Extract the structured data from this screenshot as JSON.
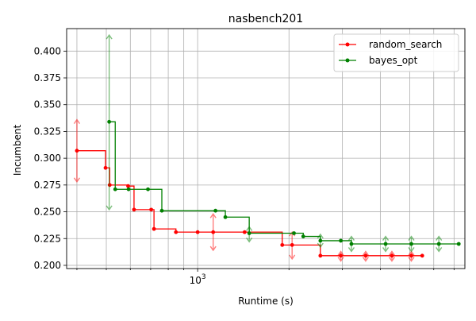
{
  "chart_data": {
    "type": "line",
    "title": "nasbench201",
    "xlabel": "Runtime (s)",
    "ylabel": "Incumbent",
    "xscale": "log",
    "xlim": [
      370,
      7600
    ],
    "ylim": [
      0.197,
      0.421
    ],
    "x_tick_labels": [
      {
        "value": 1000,
        "label": "10^3"
      }
    ],
    "y_ticks": [
      0.2,
      0.225,
      0.25,
      0.275,
      0.3,
      0.325,
      0.35,
      0.375,
      0.4
    ],
    "y_tick_labels": [
      "0.200",
      "0.225",
      "0.250",
      "0.275",
      "0.300",
      "0.325",
      "0.350",
      "0.375",
      "0.400"
    ],
    "grid": true,
    "legend_position": "top-right",
    "series": [
      {
        "name": "random_search",
        "color": "#ff0000",
        "points": [
          {
            "x": 400,
            "y": 0.307,
            "err": [
              0.278,
              0.336
            ]
          },
          {
            "x": 497,
            "y": 0.291
          },
          {
            "x": 513,
            "y": 0.275
          },
          {
            "x": 590,
            "y": 0.274
          },
          {
            "x": 617,
            "y": 0.252
          },
          {
            "x": 703,
            "y": 0.252
          },
          {
            "x": 718,
            "y": 0.234
          },
          {
            "x": 848,
            "y": 0.231
          },
          {
            "x": 1000,
            "y": 0.231
          },
          {
            "x": 1125,
            "y": 0.231,
            "err": [
              0.214,
              0.248
            ]
          },
          {
            "x": 1428,
            "y": 0.231
          },
          {
            "x": 1900,
            "y": 0.219
          },
          {
            "x": 2048,
            "y": 0.219,
            "err": [
              0.206,
              0.231
            ]
          },
          {
            "x": 2538,
            "y": 0.209
          },
          {
            "x": 2964,
            "y": 0.209,
            "err": [
              0.204,
              0.213
            ]
          },
          {
            "x": 3579,
            "y": 0.209,
            "err": [
              0.204,
              0.213
            ]
          },
          {
            "x": 4367,
            "y": 0.209,
            "err": [
              0.204,
              0.213
            ]
          },
          {
            "x": 5062,
            "y": 0.209,
            "err": [
              0.204,
              0.213
            ]
          },
          {
            "x": 5498,
            "y": 0.209
          }
        ]
      },
      {
        "name": "bayes_opt",
        "color": "#008000",
        "points": [
          {
            "x": 511,
            "y": 0.334,
            "err": [
              0.252,
              0.415
            ]
          },
          {
            "x": 535,
            "y": 0.271
          },
          {
            "x": 592,
            "y": 0.271
          },
          {
            "x": 686,
            "y": 0.271
          },
          {
            "x": 762,
            "y": 0.251
          },
          {
            "x": 1145,
            "y": 0.251
          },
          {
            "x": 1234,
            "y": 0.245
          },
          {
            "x": 1479,
            "y": 0.23,
            "err": [
              0.222,
              0.236
            ]
          },
          {
            "x": 2077,
            "y": 0.23
          },
          {
            "x": 2229,
            "y": 0.227
          },
          {
            "x": 2538,
            "y": 0.223,
            "err": [
              0.217,
              0.229
            ]
          },
          {
            "x": 2964,
            "y": 0.223
          },
          {
            "x": 3212,
            "y": 0.22,
            "err": [
              0.213,
              0.227
            ]
          },
          {
            "x": 4164,
            "y": 0.22,
            "err": [
              0.213,
              0.227
            ]
          },
          {
            "x": 5062,
            "y": 0.22,
            "err": [
              0.213,
              0.227
            ]
          },
          {
            "x": 6238,
            "y": 0.22,
            "err": [
              0.213,
              0.227
            ]
          },
          {
            "x": 7253,
            "y": 0.22
          }
        ]
      }
    ]
  }
}
